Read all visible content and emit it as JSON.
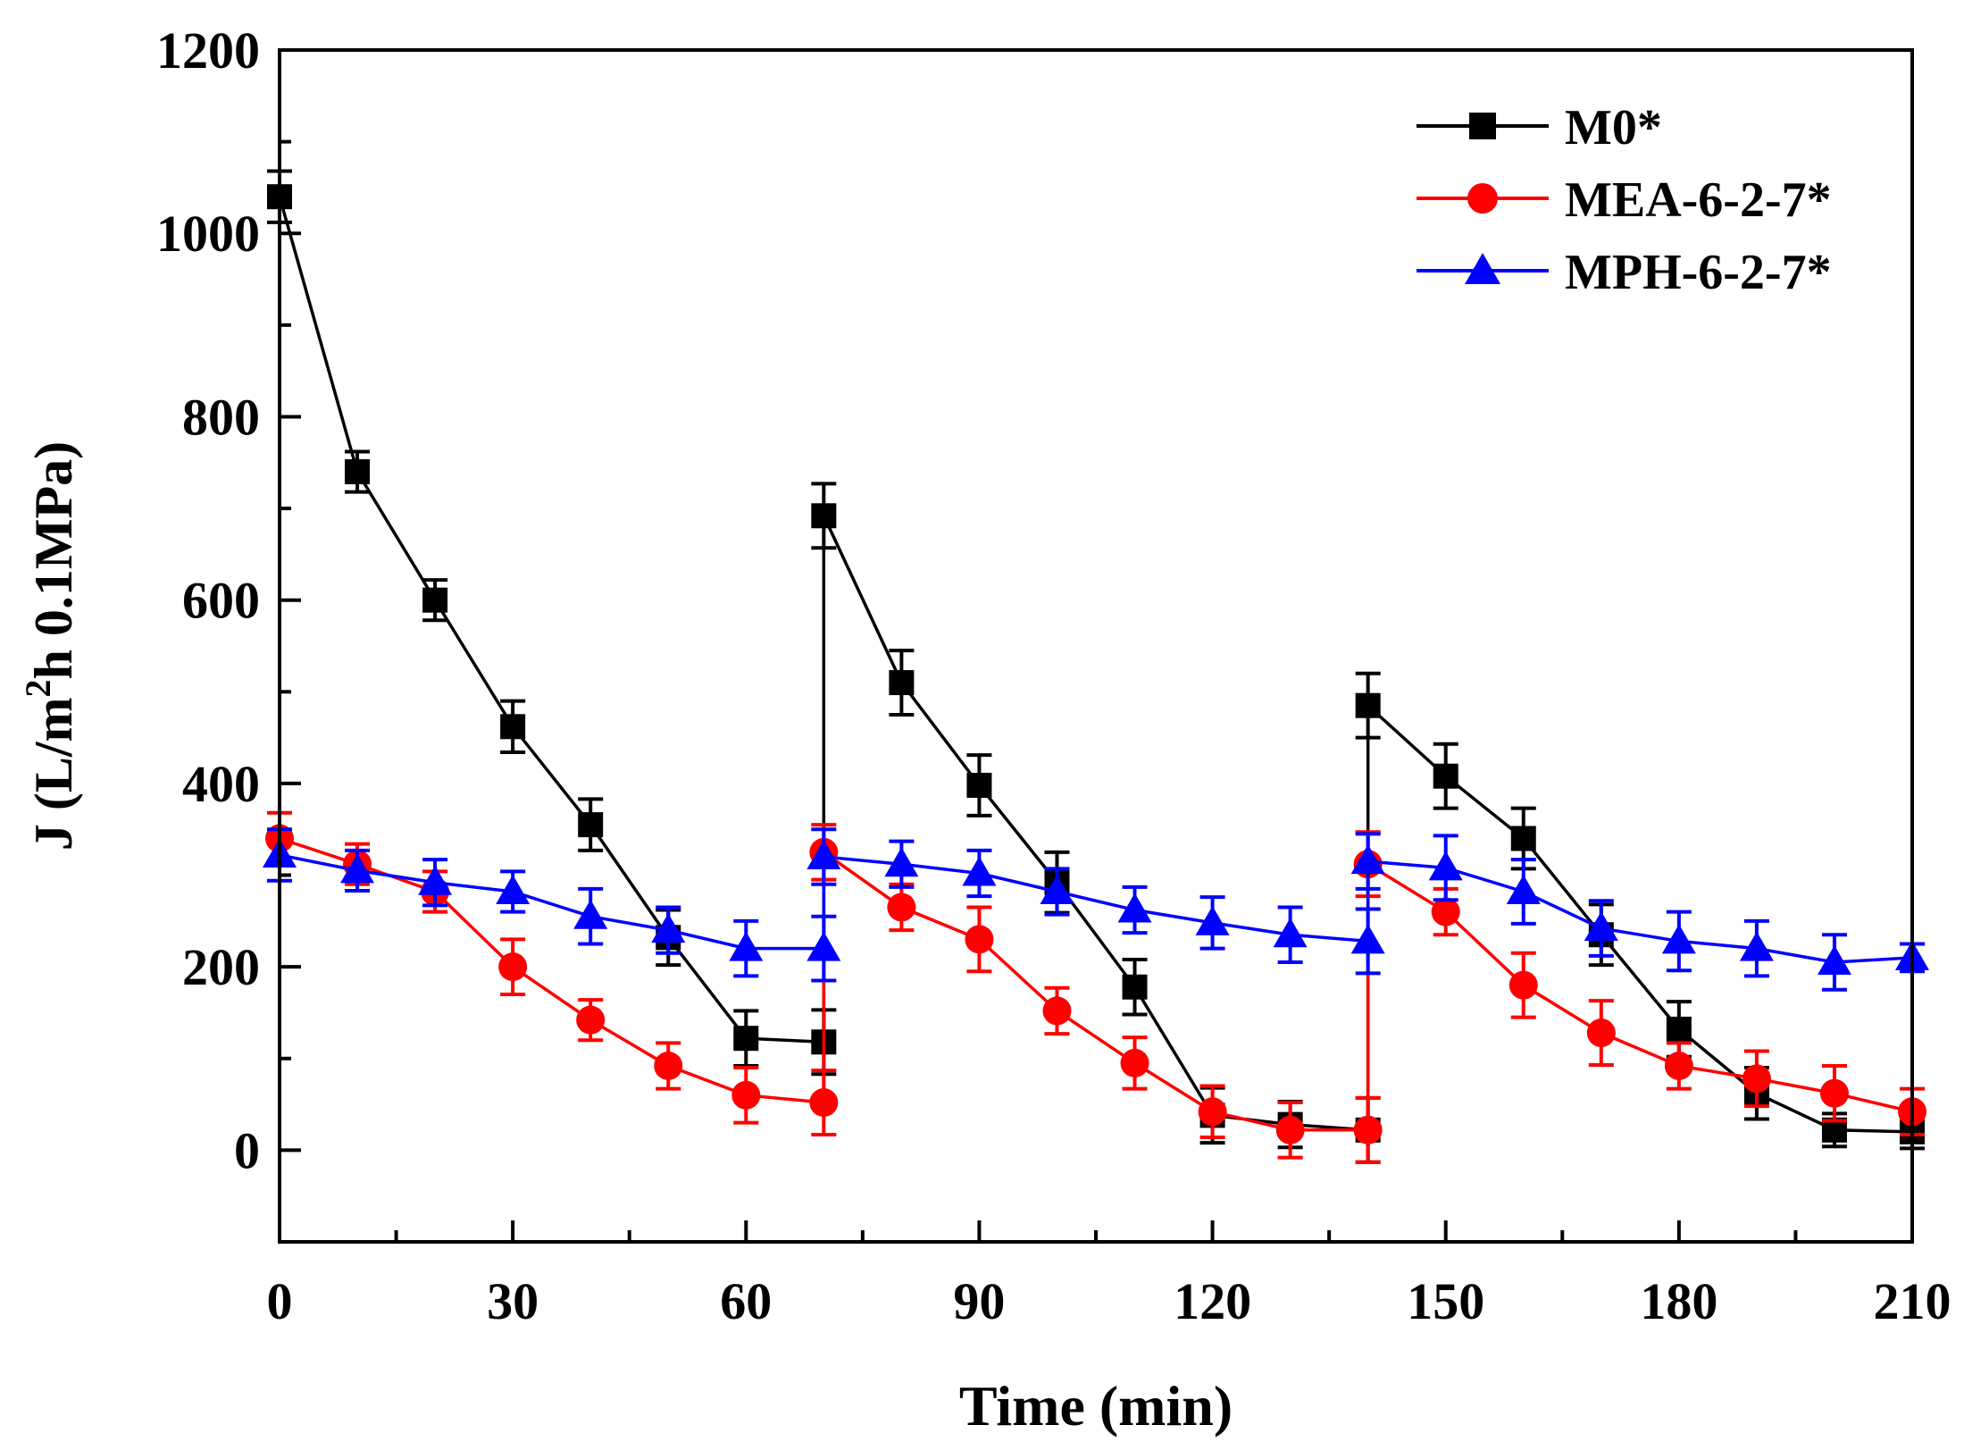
{
  "chart_data": {
    "type": "line",
    "title": "",
    "xlabel": "Time (min)",
    "ylabel_parts": {
      "pre": "J (L/m",
      "sup": "2",
      "post": "h 0.1MPa)"
    },
    "ylabel": "J (L/m2h 0.1MPa)",
    "xlim": [
      0,
      210
    ],
    "ylim": [
      -100,
      1200
    ],
    "xticks": [
      0,
      30,
      60,
      90,
      120,
      150,
      180,
      210
    ],
    "xtick_labels": [
      "0",
      "30",
      "60",
      "90",
      "120",
      "150",
      "180",
      "210"
    ],
    "yticks": [
      0,
      200,
      400,
      600,
      800,
      1000,
      1200
    ],
    "ytick_labels": [
      "0",
      "200",
      "400",
      "600",
      "800",
      "1000",
      "1200"
    ],
    "grid": false,
    "legend_position": "top-right",
    "x": [
      0,
      10,
      20,
      30,
      40,
      50,
      60,
      70,
      70,
      80,
      90,
      100,
      110,
      120,
      130,
      140,
      140,
      150,
      160,
      170,
      180,
      190,
      200,
      210
    ],
    "series": [
      {
        "name": "M0*",
        "color": "#000000",
        "marker": "square",
        "values": [
          1040,
          740,
          600,
          462,
          355,
          232,
          122,
          118,
          692,
          510,
          398,
          292,
          178,
          38,
          28,
          22,
          485,
          408,
          340,
          235,
          132,
          62,
          22,
          20
        ],
        "errors": [
          28,
          22,
          22,
          28,
          28,
          30,
          30,
          35,
          35,
          35,
          33,
          33,
          30,
          30,
          25,
          35,
          35,
          35,
          33,
          33,
          30,
          28,
          18,
          18
        ]
      },
      {
        "name": "MEA-6-2-7*",
        "color": "#ff0000",
        "marker": "circle",
        "values": [
          340,
          312,
          282,
          200,
          142,
          92,
          60,
          52,
          325,
          265,
          230,
          152,
          95,
          42,
          22,
          22,
          312,
          260,
          180,
          128,
          92,
          78,
          62,
          42
        ],
        "errors": [
          28,
          22,
          22,
          30,
          22,
          25,
          30,
          35,
          30,
          25,
          35,
          25,
          28,
          28,
          30,
          35,
          35,
          25,
          35,
          35,
          25,
          30,
          30,
          25
        ]
      },
      {
        "name": "MPH-6-2-7*",
        "color": "#0000ff",
        "marker": "triangle",
        "values": [
          322,
          305,
          292,
          282,
          255,
          240,
          220,
          220,
          320,
          312,
          302,
          282,
          262,
          248,
          235,
          228,
          315,
          308,
          282,
          242,
          228,
          220,
          205,
          210
        ],
        "errors": [
          28,
          22,
          25,
          22,
          30,
          25,
          30,
          35,
          30,
          25,
          25,
          25,
          25,
          28,
          30,
          35,
          30,
          35,
          35,
          30,
          32,
          30,
          30,
          15
        ]
      }
    ]
  }
}
